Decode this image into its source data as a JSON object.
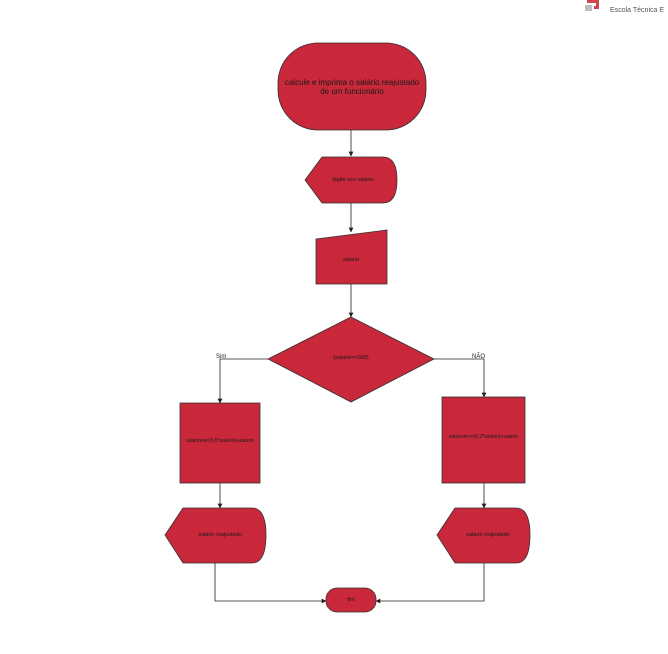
{
  "header": {
    "org_name": "Escola Técnica E",
    "logo_icon": "school-logo-icon"
  },
  "colors": {
    "shape_fill": "#c8283a",
    "shape_stroke": "#333333",
    "line": "#222222",
    "logo_accent": "#d0434f"
  },
  "flowchart": {
    "start": "calcule e imprima o salário reajustado de um funcionário",
    "input_prompt": "digite seu salario",
    "manual_input": "salario",
    "decision": "(salario<=300)",
    "branch_yes": "Sim",
    "branch_no": "NÃO",
    "process_yes": "salarioнs=(0,5*salario)+salario",
    "process_no": "salarionrs=(0,3*salario)+salario",
    "display_yes": "salário  reajustado",
    "display_no": "salario reajustado",
    "end": "fim"
  }
}
